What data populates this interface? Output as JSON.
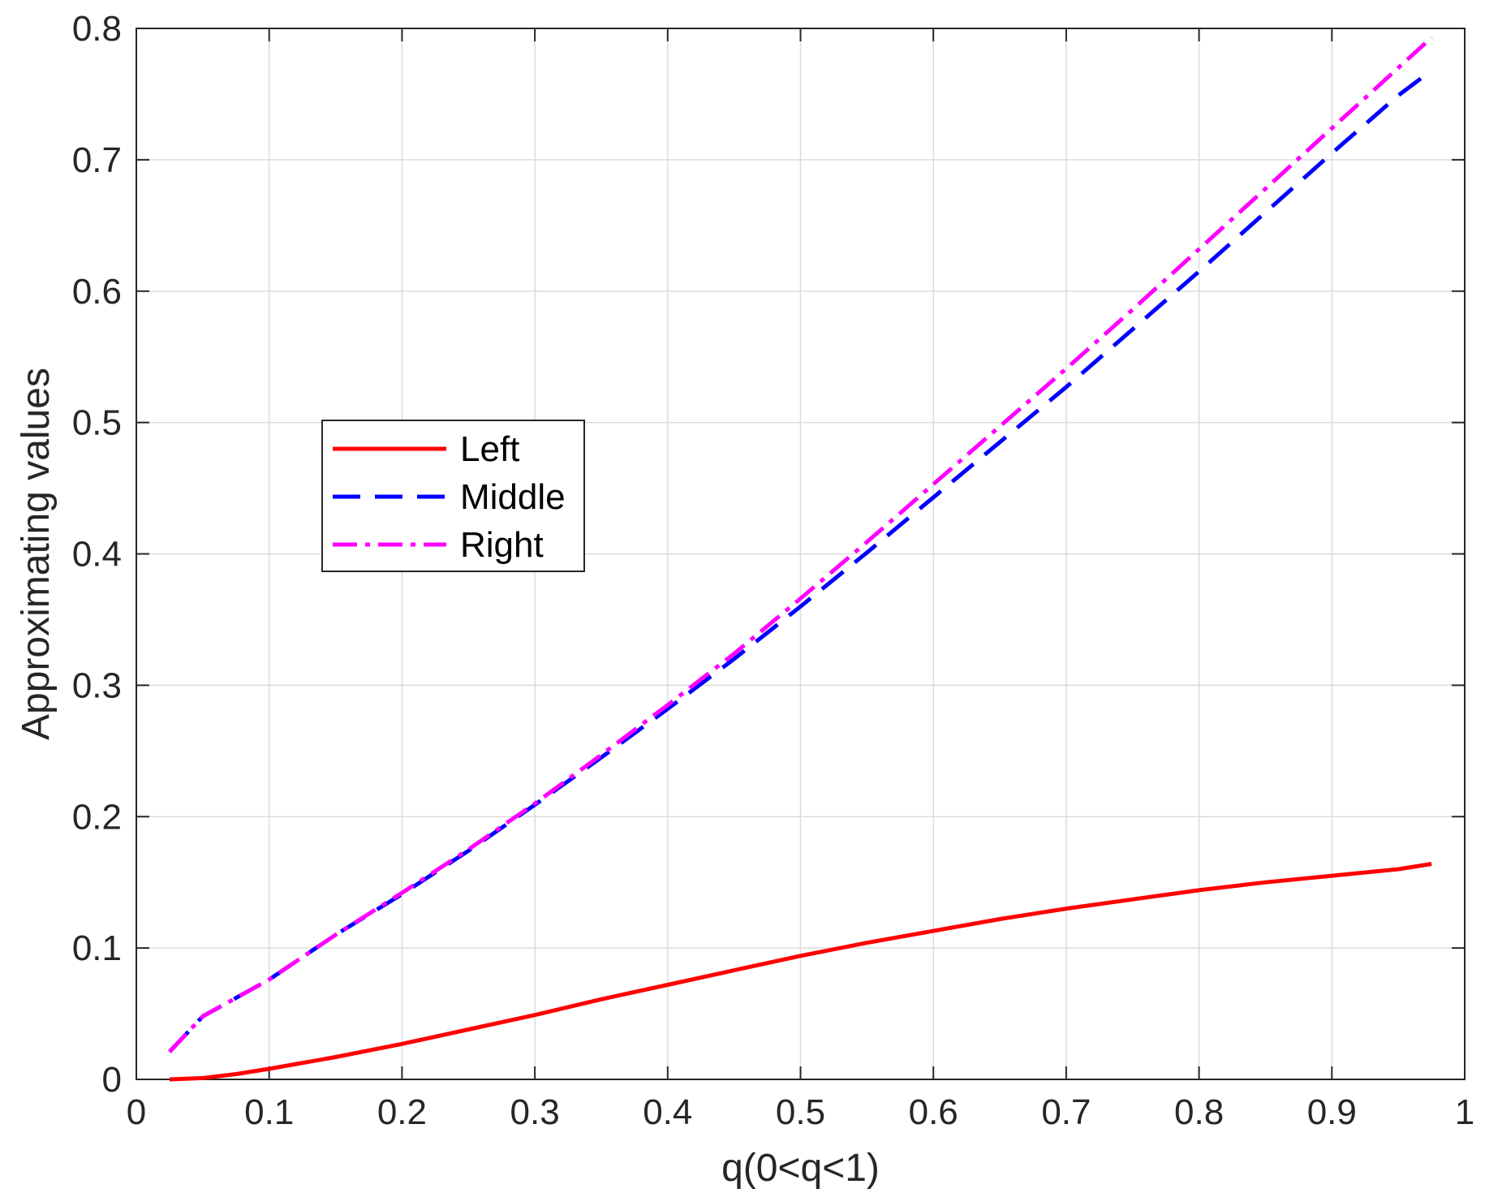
{
  "chart_data": {
    "type": "line",
    "title": "",
    "xlabel": "q(0<q<1)",
    "ylabel": "Approximating values",
    "xlim": [
      0,
      1
    ],
    "ylim": [
      0,
      0.8
    ],
    "x_ticks": [
      0,
      0.1,
      0.2,
      0.3,
      0.4,
      0.5,
      0.6,
      0.7,
      0.8,
      0.9,
      1
    ],
    "x_tick_labels": [
      "0",
      "0.1",
      "0.2",
      "0.3",
      "0.4",
      "0.5",
      "0.6",
      "0.7",
      "0.8",
      "0.9",
      "1"
    ],
    "y_ticks": [
      0,
      0.1,
      0.2,
      0.3,
      0.4,
      0.5,
      0.6,
      0.7,
      0.8
    ],
    "y_tick_labels": [
      "0",
      "0.1",
      "0.2",
      "0.3",
      "0.4",
      "0.5",
      "0.6",
      "0.7",
      "0.8"
    ],
    "grid": true,
    "legend_position": "center-left",
    "series": [
      {
        "name": "Left",
        "color": "#ff0000",
        "style": "solid",
        "x": [
          0.025,
          0.05,
          0.075,
          0.1,
          0.15,
          0.2,
          0.25,
          0.3,
          0.35,
          0.4,
          0.45,
          0.5,
          0.55,
          0.6,
          0.65,
          0.7,
          0.75,
          0.8,
          0.85,
          0.9,
          0.95,
          0.975
        ],
        "y": [
          0.0,
          0.001,
          0.004,
          0.008,
          0.017,
          0.027,
          0.038,
          0.049,
          0.061,
          0.072,
          0.083,
          0.094,
          0.104,
          0.113,
          0.122,
          0.13,
          0.137,
          0.144,
          0.15,
          0.155,
          0.16,
          0.164
        ]
      },
      {
        "name": "Middle",
        "color": "#0000ff",
        "style": "dashed",
        "x": [
          0.025,
          0.05,
          0.1,
          0.15,
          0.2,
          0.25,
          0.3,
          0.35,
          0.4,
          0.45,
          0.5,
          0.55,
          0.6,
          0.65,
          0.7,
          0.75,
          0.8,
          0.85,
          0.9,
          0.95,
          0.975
        ],
        "y": [
          0.021,
          0.048,
          0.076,
          0.11,
          0.141,
          0.174,
          0.209,
          0.245,
          0.282,
          0.32,
          0.36,
          0.401,
          0.443,
          0.485,
          0.527,
          0.571,
          0.615,
          0.66,
          0.705,
          0.749,
          0.768
        ]
      },
      {
        "name": "Right",
        "color": "#ff00ff",
        "style": "dashdot",
        "x": [
          0.025,
          0.05,
          0.1,
          0.15,
          0.2,
          0.25,
          0.3,
          0.35,
          0.4,
          0.45,
          0.5,
          0.55,
          0.6,
          0.65,
          0.7,
          0.75,
          0.8,
          0.85,
          0.9,
          0.95,
          0.975
        ],
        "y": [
          0.021,
          0.048,
          0.076,
          0.11,
          0.142,
          0.175,
          0.21,
          0.247,
          0.285,
          0.324,
          0.366,
          0.409,
          0.453,
          0.497,
          0.541,
          0.586,
          0.632,
          0.678,
          0.724,
          0.77,
          0.793
        ]
      }
    ]
  }
}
